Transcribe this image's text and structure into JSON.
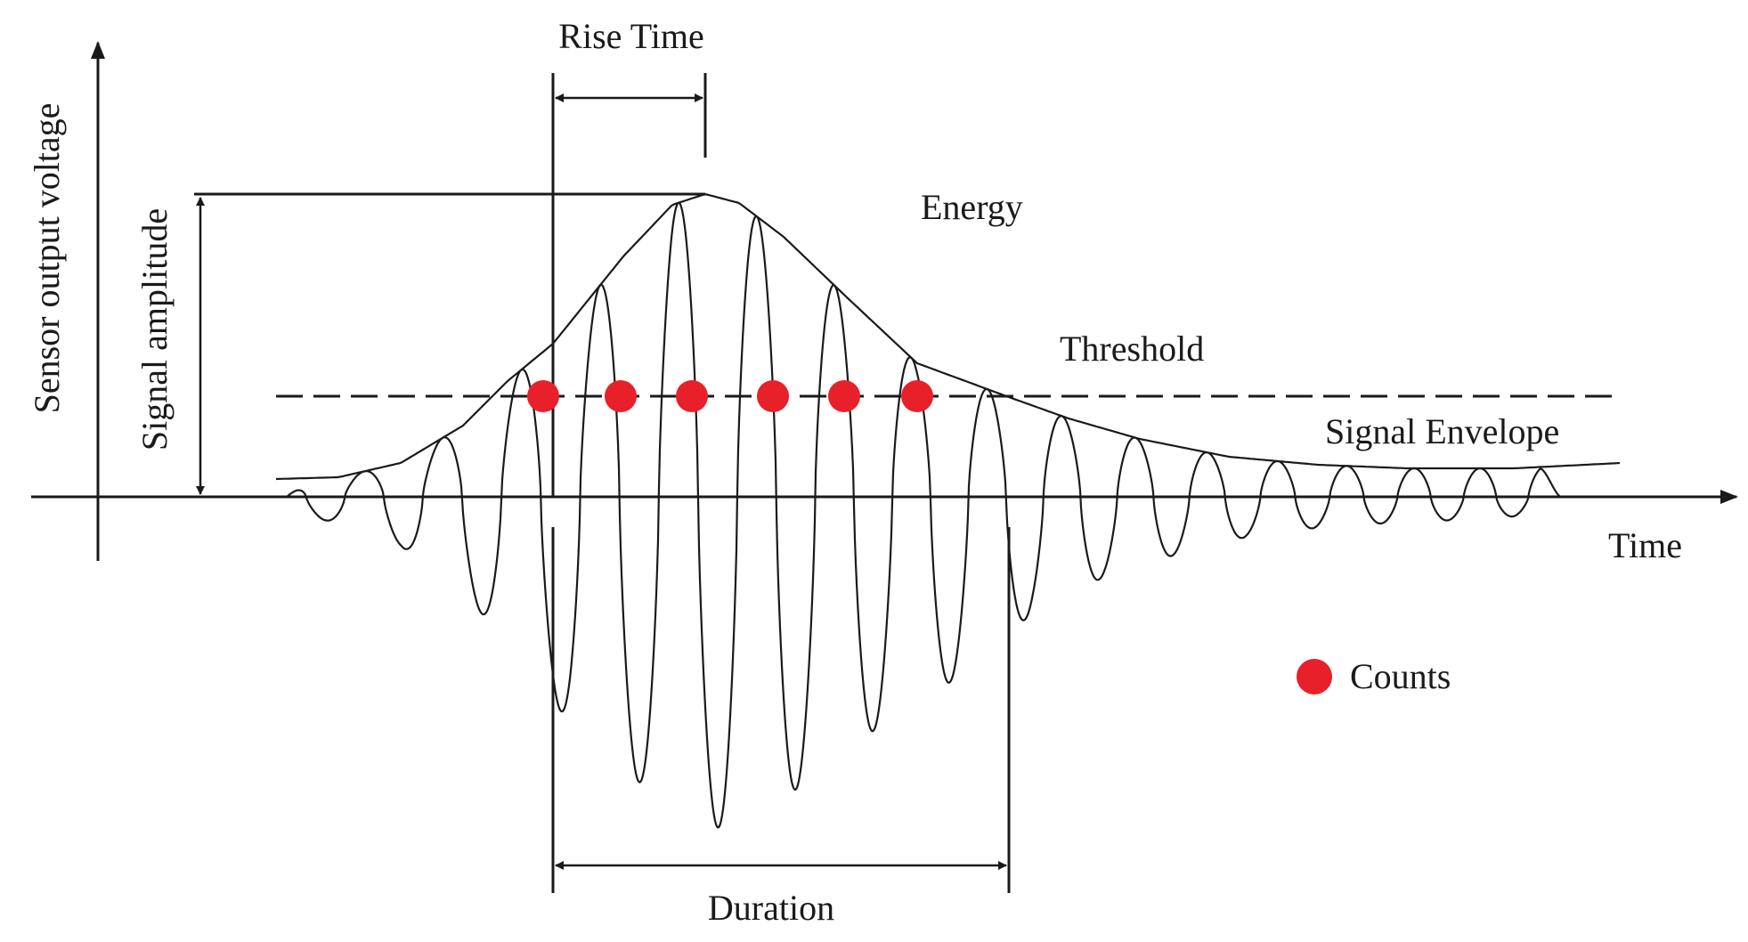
{
  "diagram": {
    "labels": {
      "y_axis": "Sensor output voltage",
      "x_axis": "Time",
      "rise_time": "Rise Time",
      "signal_amplitude": "Signal amplitude",
      "energy": "Energy",
      "threshold": "Threshold",
      "signal_envelope": "Signal Envelope",
      "duration": "Duration",
      "counts_legend": "Counts"
    },
    "colors": {
      "ink": "#1a1a1a",
      "count_marker": "#e8202a"
    },
    "count_markers": 6
  }
}
